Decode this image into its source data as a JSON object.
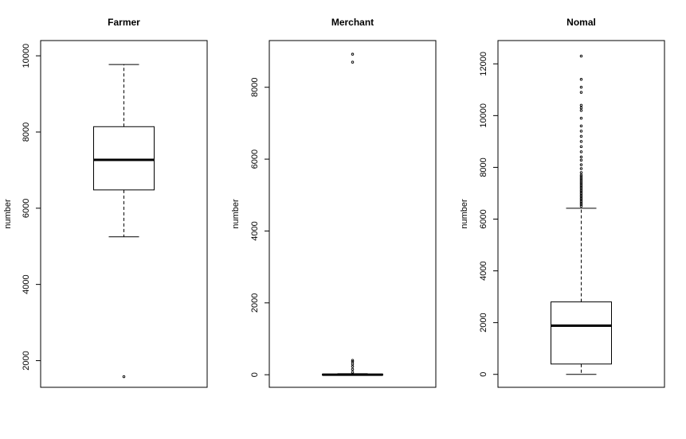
{
  "chart_data": [
    {
      "type": "boxplot",
      "title": "Farmer",
      "xlabel": "",
      "ylabel": "number",
      "ylim": [
        1300,
        10400
      ],
      "yticks": [
        2000,
        4000,
        6000,
        8000,
        10000
      ],
      "stats": {
        "whisker_low": 5250,
        "q1": 6480,
        "median": 7270,
        "q3": 8140,
        "whisker_high": 9770
      },
      "outliers": [
        1580
      ]
    },
    {
      "type": "boxplot",
      "title": "Merchant",
      "xlabel": "",
      "ylabel": "number",
      "ylim": [
        -350,
        9300
      ],
      "yticks": [
        0,
        2000,
        4000,
        6000,
        8000
      ],
      "stats": {
        "whisker_low": 0,
        "q1": 0,
        "median": 0,
        "q3": 15,
        "whisker_high": 30
      },
      "outliers": [
        70,
        150,
        230,
        300,
        360,
        400,
        8700,
        8920
      ]
    },
    {
      "type": "boxplot",
      "title": "Nomal",
      "xlabel": "",
      "ylabel": "number",
      "ylim": [
        -500,
        12900
      ],
      "yticks": [
        0,
        2000,
        4000,
        6000,
        8000,
        10000,
        12000
      ],
      "stats": {
        "whisker_low": 0,
        "q1": 400,
        "median": 1880,
        "q3": 2800,
        "whisker_high": 6420
      },
      "outliers": [
        6500,
        6560,
        6620,
        6680,
        6740,
        6800,
        6860,
        6920,
        6980,
        7040,
        7100,
        7160,
        7220,
        7280,
        7340,
        7400,
        7460,
        7520,
        7580,
        7640,
        7700,
        7800,
        7950,
        8100,
        8280,
        8400,
        8600,
        8800,
        9000,
        9200,
        9400,
        9600,
        9900,
        10200,
        10300,
        10400,
        10900,
        11100,
        11400,
        12300
      ]
    }
  ]
}
